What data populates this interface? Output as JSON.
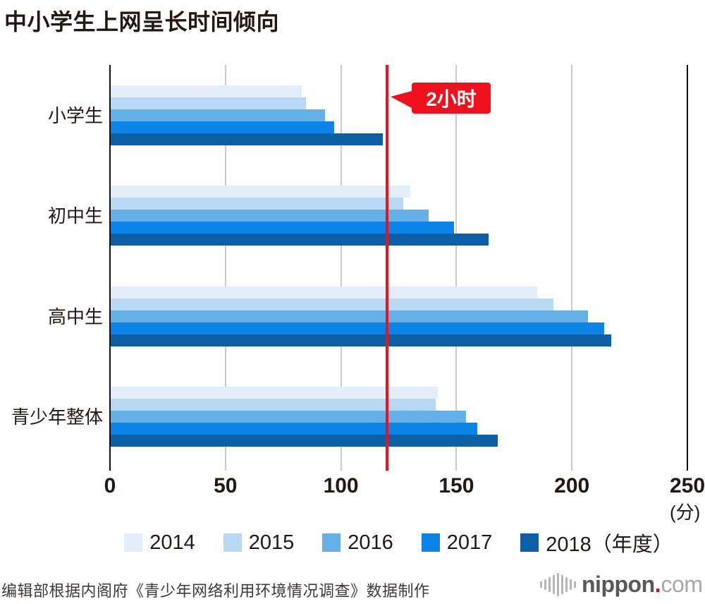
{
  "title": "中小学生上网呈长时间倾向",
  "chart_data": {
    "type": "bar",
    "orientation": "horizontal",
    "title": "中小学生上网呈长时间倾向",
    "xlabel_unit": "(分)",
    "xlim": [
      0,
      250
    ],
    "x_ticks": [
      0,
      50,
      100,
      150,
      200,
      250
    ],
    "grid": true,
    "legend_position": "bottom",
    "categories": [
      "小学生",
      "初中生",
      "高中生",
      "青少年整体"
    ],
    "series": [
      {
        "name": "2014",
        "legend_label": "2014",
        "color": "#e3eefa",
        "values": [
          83,
          130,
          185,
          142
        ]
      },
      {
        "name": "2015",
        "legend_label": "2015",
        "color": "#b8d8f3",
        "values": [
          85,
          127,
          192,
          141
        ]
      },
      {
        "name": "2016",
        "legend_label": "2016",
        "color": "#66b0e8",
        "values": [
          93,
          138,
          207,
          154
        ]
      },
      {
        "name": "2017",
        "legend_label": "2017",
        "color": "#0c83e6",
        "values": [
          97,
          149,
          214,
          159
        ]
      },
      {
        "name": "2018",
        "legend_label": "2018（年度）",
        "color": "#0b5fa5",
        "values": [
          118,
          164,
          217,
          168
        ]
      }
    ],
    "reference_line": {
      "value": 120,
      "label": "2小时",
      "color": "#ee111d"
    }
  },
  "source_note": "编辑部根据内阁府《青少年网络利用环境情况调查》数据制作",
  "logo": {
    "alt": "nippon.com",
    "text_main": "nippon",
    "text_dot": ".",
    "text_suffix": "com"
  }
}
